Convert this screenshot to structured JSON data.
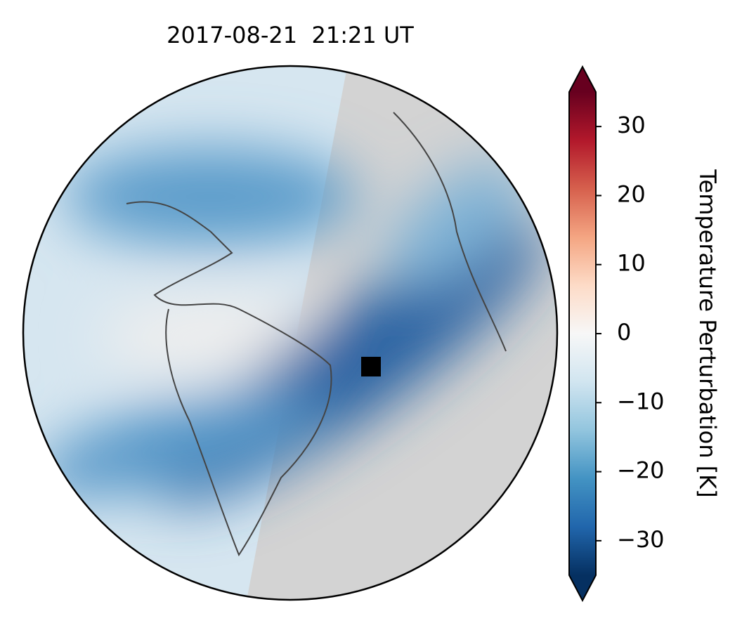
{
  "chart_data": {
    "type": "map",
    "title": "2017-08-21  21:21 UT",
    "colorbar": {
      "label": "Temperature Perturbation [K]",
      "lim": [
        -35,
        35
      ],
      "ticks": [
        {
          "value": -30,
          "label": "−30"
        },
        {
          "value": -20,
          "label": "−20"
        },
        {
          "value": -10,
          "label": "−10"
        },
        0,
        10,
        20,
        30
      ],
      "colors": [
        "#053061",
        "#2166ac",
        "#4393c3",
        "#92c5de",
        "#d1e5f0",
        "#f7f7f7",
        "#fddbc7",
        "#f4a582",
        "#d6604d",
        "#b2182b",
        "#67001f"
      ]
    }
  }
}
